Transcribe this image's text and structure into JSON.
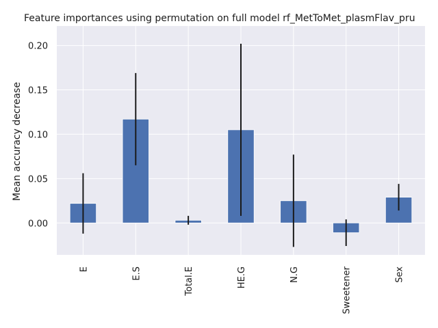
{
  "chart_data": {
    "type": "bar",
    "title": "Feature importances using permutation on full model rf_MetToMet_plasmFlav_pru",
    "xlabel": "",
    "ylabel": "Mean accuracy decrease",
    "categories": [
      "E",
      "E.S",
      "Total.E",
      "HE.G",
      "N.G",
      "Sweetener",
      "Sex"
    ],
    "values": [
      0.022,
      0.117,
      0.003,
      0.105,
      0.025,
      -0.011,
      0.029
    ],
    "errors": [
      0.034,
      0.052,
      0.005,
      0.097,
      0.052,
      0.015,
      0.015
    ],
    "ylim": [
      -0.036,
      0.222
    ],
    "yticks": [
      0.0,
      0.05,
      0.1,
      0.15,
      0.2
    ],
    "ytick_labels": [
      "0.00",
      "0.05",
      "0.10",
      "0.15",
      "0.20"
    ],
    "grid": true,
    "colors": {
      "bar": "#4c72b0",
      "error": "#1a1a1a",
      "plot_bg": "#eaeaf2",
      "grid": "#ffffff"
    }
  }
}
